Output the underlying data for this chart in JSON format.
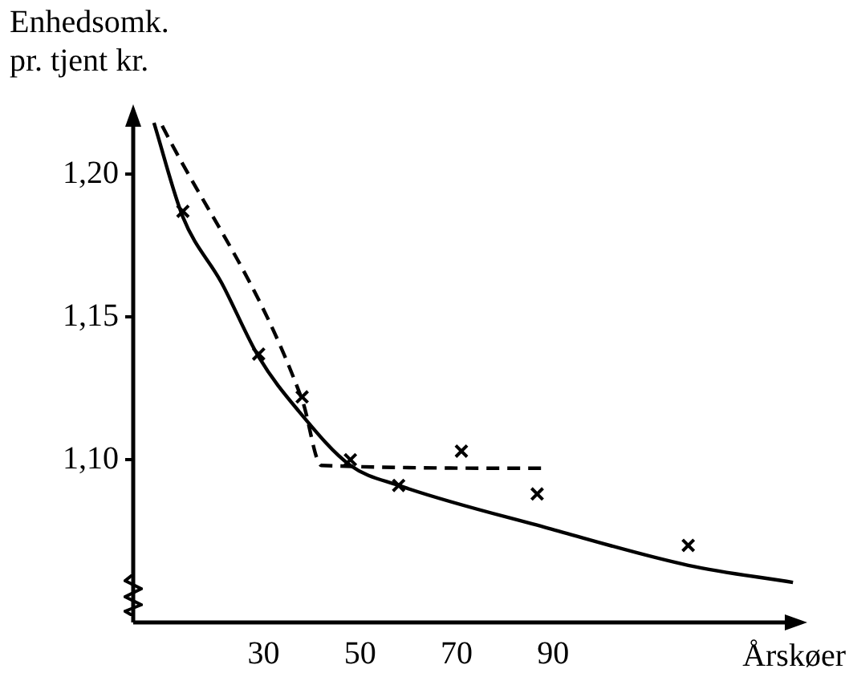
{
  "chart_data": {
    "type": "line",
    "xlabel": "Årskøer",
    "ylabel": "Enhedsomk.\npr. tjent kr.",
    "xlim": [
      3,
      140
    ],
    "ylim": [
      1.043,
      1.22
    ],
    "xticks": [
      30,
      50,
      70,
      90
    ],
    "yticks": [
      {
        "value": 1.1,
        "label": "1,10"
      },
      {
        "value": 1.15,
        "label": "1,15"
      },
      {
        "value": 1.2,
        "label": "1,20"
      }
    ],
    "series": [
      {
        "type": "scatter",
        "color": "#000000",
        "marker": "cross",
        "x": [
          13.3,
          29,
          38,
          48,
          58,
          71,
          86.7,
          118
        ],
        "values": [
          1.187,
          1.137,
          1.122,
          1.1,
          1.091,
          1.103,
          1.088,
          1.07
        ]
      },
      {
        "color": "#000000",
        "line_style": "solid",
        "marker": "none",
        "x": [
          7.3,
          13.3,
          21.3,
          29,
          37.3,
          48,
          58,
          89,
          118,
          139.7
        ],
        "values": [
          1.218,
          1.185,
          1.162,
          1.136,
          1.117,
          1.098,
          1.091,
          1.076,
          1.063,
          1.057
        ]
      },
      {
        "color": "#000000",
        "line_style": "dashed",
        "marker": "none",
        "x": [
          9,
          38,
          42,
          88
        ],
        "values": [
          1.217,
          1.121,
          1.098,
          1.097
        ]
      }
    ]
  }
}
